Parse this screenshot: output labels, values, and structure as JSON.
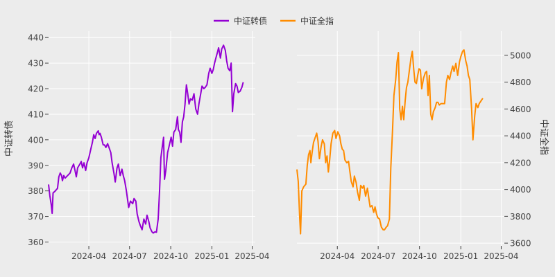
{
  "chart_data": {
    "type": "line",
    "legend": {
      "placement": "top-center",
      "entries": [
        {
          "name": "中证转债",
          "color": "#9400d3"
        },
        {
          "name": "中证全指",
          "color": "#ff8c00"
        }
      ]
    },
    "grid": true,
    "panels": [
      {
        "series_name": "中证转债",
        "color": "#9400d3",
        "ylabel": "中证转债",
        "ylabel_side": "left",
        "ylim": [
          358.5,
          442.5
        ],
        "yticks": [
          360,
          370,
          380,
          390,
          400,
          410,
          420,
          430,
          440
        ],
        "xticks": [
          "2024-04",
          "2024-07",
          "2024-10",
          "2025-01",
          "2025-04"
        ],
        "xlim": [
          "2024-01-02",
          "2025-04-08"
        ],
        "points": [
          [
            "2024-01-02",
            382.5
          ],
          [
            "2024-01-05",
            378.0
          ],
          [
            "2024-01-08",
            374.5
          ],
          [
            "2024-01-10",
            371.2
          ],
          [
            "2024-01-12",
            379.2
          ],
          [
            "2024-01-17",
            380.0
          ],
          [
            "2024-01-22",
            381.0
          ],
          [
            "2024-01-25",
            385.5
          ],
          [
            "2024-01-28",
            387.0
          ],
          [
            "2024-01-31",
            386.0
          ],
          [
            "2024-02-02",
            384.0
          ],
          [
            "2024-02-05",
            386.0
          ],
          [
            "2024-02-08",
            385.0
          ],
          [
            "2024-02-19",
            387.0
          ],
          [
            "2024-02-23",
            389.0
          ],
          [
            "2024-02-27",
            390.5
          ],
          [
            "2024-03-01",
            388.0
          ],
          [
            "2024-03-04",
            385.5
          ],
          [
            "2024-03-07",
            389.0
          ],
          [
            "2024-03-12",
            390.5
          ],
          [
            "2024-03-15",
            391.5
          ],
          [
            "2024-03-18",
            389.0
          ],
          [
            "2024-03-21",
            391.0
          ],
          [
            "2024-03-25",
            388.0
          ],
          [
            "2024-03-28",
            391.0
          ],
          [
            "2024-04-01",
            393.0
          ],
          [
            "2024-04-05",
            396.0
          ],
          [
            "2024-04-09",
            399.0
          ],
          [
            "2024-04-12",
            402.0
          ],
          [
            "2024-04-15",
            400.5
          ],
          [
            "2024-04-18",
            402.5
          ],
          [
            "2024-04-22",
            403.5
          ],
          [
            "2024-04-24",
            402.0
          ],
          [
            "2024-04-26",
            402.5
          ],
          [
            "2024-04-29",
            401.0
          ],
          [
            "2024-05-03",
            398.0
          ],
          [
            "2024-05-06",
            398.0
          ],
          [
            "2024-05-09",
            397.0
          ],
          [
            "2024-05-13",
            398.5
          ],
          [
            "2024-05-16",
            397.0
          ],
          [
            "2024-05-20",
            395.0
          ],
          [
            "2024-05-23",
            391.0
          ],
          [
            "2024-05-27",
            387.0
          ],
          [
            "2024-05-30",
            383.5
          ],
          [
            "2024-06-03",
            389.0
          ],
          [
            "2024-06-06",
            390.5
          ],
          [
            "2024-06-10",
            386.0
          ],
          [
            "2024-06-14",
            388.5
          ],
          [
            "2024-06-17",
            386.0
          ],
          [
            "2024-06-20",
            384.0
          ],
          [
            "2024-06-24",
            380.0
          ],
          [
            "2024-06-27",
            376.0
          ],
          [
            "2024-06-29",
            373.5
          ],
          [
            "2024-07-03",
            376.0
          ],
          [
            "2024-07-08",
            375.0
          ],
          [
            "2024-07-11",
            377.0
          ],
          [
            "2024-07-15",
            376.0
          ],
          [
            "2024-07-18",
            371.0
          ],
          [
            "2024-07-22",
            368.0
          ],
          [
            "2024-07-25",
            366.5
          ],
          [
            "2024-07-29",
            364.8
          ],
          [
            "2024-08-02",
            369.0
          ],
          [
            "2024-08-06",
            367.0
          ],
          [
            "2024-08-09",
            370.5
          ],
          [
            "2024-08-13",
            368.0
          ],
          [
            "2024-08-16",
            365.5
          ],
          [
            "2024-08-20",
            364.0
          ],
          [
            "2024-08-23",
            363.5
          ],
          [
            "2024-08-27",
            364.0
          ],
          [
            "2024-08-30",
            363.8
          ],
          [
            "2024-09-03",
            369.0
          ],
          [
            "2024-09-06",
            380.0
          ],
          [
            "2024-09-09",
            393.0
          ],
          [
            "2024-09-12",
            397.0
          ],
          [
            "2024-09-15",
            401.0
          ],
          [
            "2024-09-17",
            384.5
          ],
          [
            "2024-09-20",
            388.0
          ],
          [
            "2024-09-24",
            395.0
          ],
          [
            "2024-09-28",
            398.0
          ],
          [
            "2024-10-02",
            401.0
          ],
          [
            "2024-10-05",
            397.5
          ],
          [
            "2024-10-08",
            403.0
          ],
          [
            "2024-10-12",
            404.0
          ],
          [
            "2024-10-16",
            409.0
          ],
          [
            "2024-10-18",
            404.0
          ],
          [
            "2024-10-21",
            403.0
          ],
          [
            "2024-10-24",
            399.0
          ],
          [
            "2024-10-27",
            407.0
          ],
          [
            "2024-10-30",
            409.0
          ],
          [
            "2024-11-02",
            414.0
          ],
          [
            "2024-11-05",
            421.5
          ],
          [
            "2024-11-08",
            418.0
          ],
          [
            "2024-11-11",
            414.0
          ],
          [
            "2024-11-14",
            416.0
          ],
          [
            "2024-11-18",
            415.5
          ],
          [
            "2024-11-22",
            418.0
          ],
          [
            "2024-11-26",
            412.0
          ],
          [
            "2024-11-30",
            410.0
          ],
          [
            "2024-12-03",
            414.0
          ],
          [
            "2024-12-07",
            418.0
          ],
          [
            "2024-12-10",
            421.0
          ],
          [
            "2024-12-14",
            420.0
          ],
          [
            "2024-12-17",
            420.5
          ],
          [
            "2024-12-21",
            421.5
          ],
          [
            "2024-12-25",
            426.0
          ],
          [
            "2024-12-28",
            428.0
          ],
          [
            "2025-01-01",
            426.0
          ],
          [
            "2025-01-04",
            427.5
          ],
          [
            "2025-01-07",
            430.0
          ],
          [
            "2025-01-10",
            432.0
          ],
          [
            "2025-01-13",
            434.0
          ],
          [
            "2025-01-16",
            436.0
          ],
          [
            "2025-01-20",
            432.0
          ],
          [
            "2025-01-23",
            435.5
          ],
          [
            "2025-01-27",
            437.0
          ],
          [
            "2025-01-31",
            435.0
          ],
          [
            "2025-02-03",
            431.0
          ],
          [
            "2025-02-06",
            428.0
          ],
          [
            "2025-02-10",
            427.0
          ],
          [
            "2025-02-13",
            430.0
          ],
          [
            "2025-02-16",
            411.0
          ],
          [
            "2025-02-19",
            418.0
          ],
          [
            "2025-02-23",
            422.0
          ],
          [
            "2025-02-26",
            421.0
          ],
          [
            "2025-03-01",
            418.5
          ],
          [
            "2025-03-05",
            419.0
          ],
          [
            "2025-03-09",
            420.5
          ],
          [
            "2025-03-12",
            422.5
          ]
        ]
      },
      {
        "series_name": "中证全指",
        "color": "#ff8c00",
        "ylabel": "中证全指",
        "ylabel_side": "right",
        "ylim": [
          3580,
          5180
        ],
        "yticks": [
          3600,
          3800,
          4000,
          4200,
          4400,
          4600,
          4800,
          5000
        ],
        "xticks": [
          "2024-04",
          "2024-07",
          "2024-10",
          "2025-01",
          "2025-04"
        ],
        "xlim": [
          "2024-01-02",
          "2025-04-08"
        ],
        "points": [
          [
            "2024-01-02",
            4150
          ],
          [
            "2024-01-05",
            4060
          ],
          [
            "2024-01-08",
            3800
          ],
          [
            "2024-01-10",
            3670
          ],
          [
            "2024-01-13",
            3990
          ],
          [
            "2024-01-17",
            4020
          ],
          [
            "2024-01-22",
            4040
          ],
          [
            "2024-01-25",
            4180
          ],
          [
            "2024-01-28",
            4260
          ],
          [
            "2024-01-31",
            4290
          ],
          [
            "2024-02-02",
            4200
          ],
          [
            "2024-02-05",
            4280
          ],
          [
            "2024-02-08",
            4350
          ],
          [
            "2024-02-12",
            4390
          ],
          [
            "2024-02-15",
            4420
          ],
          [
            "2024-02-18",
            4360
          ],
          [
            "2024-02-21",
            4230
          ],
          [
            "2024-02-25",
            4320
          ],
          [
            "2024-02-28",
            4370
          ],
          [
            "2024-03-03",
            4340
          ],
          [
            "2024-03-06",
            4200
          ],
          [
            "2024-03-09",
            4250
          ],
          [
            "2024-03-12",
            4130
          ],
          [
            "2024-03-15",
            4220
          ],
          [
            "2024-03-18",
            4340
          ],
          [
            "2024-03-22",
            4420
          ],
          [
            "2024-03-26",
            4440
          ],
          [
            "2024-03-29",
            4380
          ],
          [
            "2024-04-02",
            4430
          ],
          [
            "2024-04-06",
            4400
          ],
          [
            "2024-04-09",
            4340
          ],
          [
            "2024-04-12",
            4300
          ],
          [
            "2024-04-15",
            4290
          ],
          [
            "2024-04-18",
            4220
          ],
          [
            "2024-04-22",
            4200
          ],
          [
            "2024-04-26",
            4210
          ],
          [
            "2024-04-29",
            4130
          ],
          [
            "2024-05-02",
            4060
          ],
          [
            "2024-05-06",
            4020
          ],
          [
            "2024-05-09",
            4100
          ],
          [
            "2024-05-13",
            4050
          ],
          [
            "2024-05-16",
            3980
          ],
          [
            "2024-05-20",
            3920
          ],
          [
            "2024-05-23",
            4030
          ],
          [
            "2024-05-27",
            4010
          ],
          [
            "2024-05-30",
            4030
          ],
          [
            "2024-06-03",
            3950
          ],
          [
            "2024-06-07",
            4010
          ],
          [
            "2024-06-10",
            3940
          ],
          [
            "2024-06-13",
            3870
          ],
          [
            "2024-06-17",
            3880
          ],
          [
            "2024-06-21",
            3830
          ],
          [
            "2024-06-24",
            3870
          ],
          [
            "2024-06-27",
            3820
          ],
          [
            "2024-06-30",
            3790
          ],
          [
            "2024-07-04",
            3780
          ],
          [
            "2024-07-08",
            3720
          ],
          [
            "2024-07-12",
            3700
          ],
          [
            "2024-07-15",
            3700
          ],
          [
            "2024-07-19",
            3720
          ],
          [
            "2024-07-22",
            3730
          ],
          [
            "2024-07-26",
            3780
          ],
          [
            "2024-07-29",
            4160
          ],
          [
            "2024-08-02",
            4450
          ],
          [
            "2024-08-05",
            4700
          ],
          [
            "2024-08-09",
            4820
          ],
          [
            "2024-08-12",
            4950
          ],
          [
            "2024-08-15",
            5020
          ],
          [
            "2024-08-18",
            4600
          ],
          [
            "2024-08-21",
            4520
          ],
          [
            "2024-08-24",
            4620
          ],
          [
            "2024-08-27",
            4520
          ],
          [
            "2024-08-30",
            4660
          ],
          [
            "2024-09-02",
            4760
          ],
          [
            "2024-09-05",
            4800
          ],
          [
            "2024-09-09",
            4900
          ],
          [
            "2024-09-12",
            4980
          ],
          [
            "2024-09-15",
            5030
          ],
          [
            "2024-09-18",
            4900
          ],
          [
            "2024-09-21",
            4800
          ],
          [
            "2024-09-24",
            4790
          ],
          [
            "2024-09-27",
            4850
          ],
          [
            "2024-09-30",
            4900
          ],
          [
            "2024-10-03",
            4890
          ],
          [
            "2024-10-06",
            4750
          ],
          [
            "2024-10-10",
            4830
          ],
          [
            "2024-10-14",
            4870
          ],
          [
            "2024-10-17",
            4880
          ],
          [
            "2024-10-20",
            4700
          ],
          [
            "2024-10-23",
            4850
          ],
          [
            "2024-10-26",
            4560
          ],
          [
            "2024-10-29",
            4520
          ],
          [
            "2024-11-01",
            4580
          ],
          [
            "2024-11-05",
            4610
          ],
          [
            "2024-11-08",
            4650
          ],
          [
            "2024-11-11",
            4650
          ],
          [
            "2024-11-14",
            4630
          ],
          [
            "2024-11-18",
            4640
          ],
          [
            "2024-11-22",
            4640
          ],
          [
            "2024-11-26",
            4640
          ],
          [
            "2024-11-30",
            4800
          ],
          [
            "2024-12-03",
            4850
          ],
          [
            "2024-12-07",
            4820
          ],
          [
            "2024-12-10",
            4870
          ],
          [
            "2024-12-14",
            4920
          ],
          [
            "2024-12-17",
            4880
          ],
          [
            "2024-12-21",
            4940
          ],
          [
            "2024-12-25",
            4850
          ],
          [
            "2024-12-29",
            4950
          ],
          [
            "2025-01-01",
            4990
          ],
          [
            "2025-01-05",
            5030
          ],
          [
            "2025-01-08",
            5040
          ],
          [
            "2025-01-12",
            4960
          ],
          [
            "2025-01-15",
            4920
          ],
          [
            "2025-01-18",
            4850
          ],
          [
            "2025-01-21",
            4820
          ],
          [
            "2025-01-25",
            4600
          ],
          [
            "2025-01-28",
            4370
          ],
          [
            "2025-02-01",
            4550
          ],
          [
            "2025-02-04",
            4640
          ],
          [
            "2025-02-08",
            4610
          ],
          [
            "2025-02-11",
            4640
          ],
          [
            "2025-02-15",
            4660
          ],
          [
            "2025-02-19",
            4680
          ]
        ]
      }
    ]
  }
}
